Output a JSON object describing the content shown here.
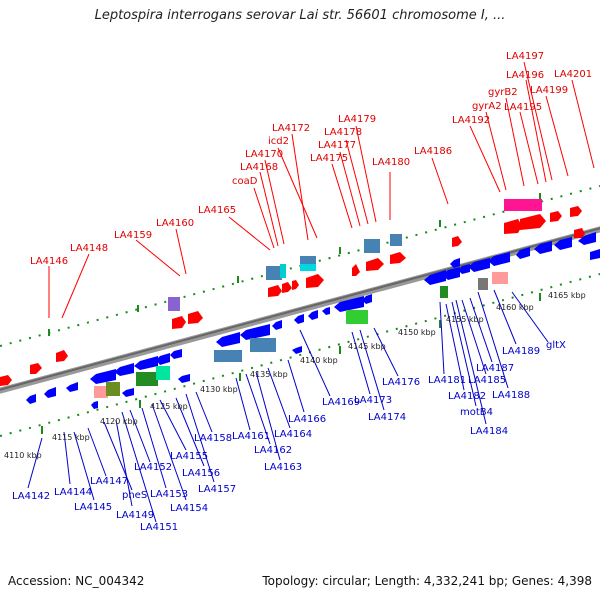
{
  "title": "Leptospira interrogans serovar Lai str. 56601 chromosome I, ...",
  "footer": {
    "accession": "Accession: NC_004342",
    "topology": "Topology: circular; Length: 4,332,241 bp; Genes: 4,398"
  },
  "colors": {
    "forward": "#ff0000",
    "reverse": "#0000ff",
    "backbone": "#888888",
    "ticks_top": "#007700",
    "ticks_bottom": "#007700"
  },
  "scale_labels": [
    "4110 kbp",
    "4115 kbp",
    "4120 kbp",
    "4125 kbp",
    "4130 kbp",
    "4135 kbp",
    "4140 kbp",
    "4145 kbp",
    "4150 kbp",
    "4155 kbp",
    "4160 kbp",
    "4165 kbp"
  ],
  "top_genes": [
    "LA4146",
    "LA4148",
    "LA4159",
    "LA4160",
    "LA4165",
    "coaD",
    "LA4168",
    "LA4170",
    "icd2",
    "LA4172",
    "LA4175",
    "LA4177",
    "LA4178",
    "LA4179",
    "LA4180",
    "LA4186",
    "LA4192",
    "gyrA2",
    "gyrB2",
    "LA4195",
    "LA4196",
    "LA4197",
    "LA4199",
    "LA4201"
  ],
  "bottom_genes": [
    "LA4142",
    "LA4144",
    "LA4145",
    "LA4147",
    "pheS",
    "LA4149",
    "LA4151",
    "LA4152",
    "LA4153",
    "LA4154",
    "LA4155",
    "LA4156",
    "LA4157",
    "LA4158",
    "LA4161",
    "LA4162",
    "LA4163",
    "LA4164",
    "LA4166",
    "LA4169",
    "LA4173",
    "LA4174",
    "LA4176",
    "LA4181",
    "LA4182",
    "motB4",
    "LA4184",
    "LA4185",
    "LA4187",
    "LA4188",
    "LA4189",
    "gltX"
  ]
}
